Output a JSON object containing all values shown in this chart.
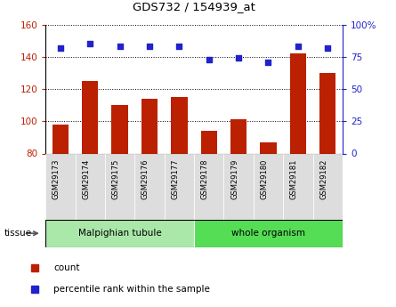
{
  "title": "GDS732 / 154939_at",
  "categories": [
    "GSM29173",
    "GSM29174",
    "GSM29175",
    "GSM29176",
    "GSM29177",
    "GSM29178",
    "GSM29179",
    "GSM29180",
    "GSM29181",
    "GSM29182"
  ],
  "bar_values": [
    98,
    125,
    110,
    114,
    115,
    94,
    101,
    87,
    142,
    130
  ],
  "dot_values": [
    82,
    85,
    83,
    83,
    83,
    73,
    74,
    71,
    83,
    82
  ],
  "bar_color": "#bb2000",
  "dot_color": "#2222cc",
  "left_ylim": [
    80,
    160
  ],
  "left_yticks": [
    80,
    100,
    120,
    140,
    160
  ],
  "right_ylim": [
    0,
    100
  ],
  "right_yticks": [
    0,
    25,
    50,
    75,
    100
  ],
  "right_yticklabels": [
    "0",
    "25",
    "50",
    "75",
    "100%"
  ],
  "tissue_groups": [
    {
      "label": "Malpighian tubule",
      "indices": [
        0,
        1,
        2,
        3,
        4
      ],
      "color": "#aae8aa"
    },
    {
      "label": "whole organism",
      "indices": [
        5,
        6,
        7,
        8,
        9
      ],
      "color": "#55dd55"
    }
  ],
  "tissue_label": "tissue",
  "legend_items": [
    {
      "label": "count",
      "color": "#bb2000"
    },
    {
      "label": "percentile rank within the sample",
      "color": "#2222cc"
    }
  ],
  "bar_bottom": 80,
  "bar_width": 0.55
}
